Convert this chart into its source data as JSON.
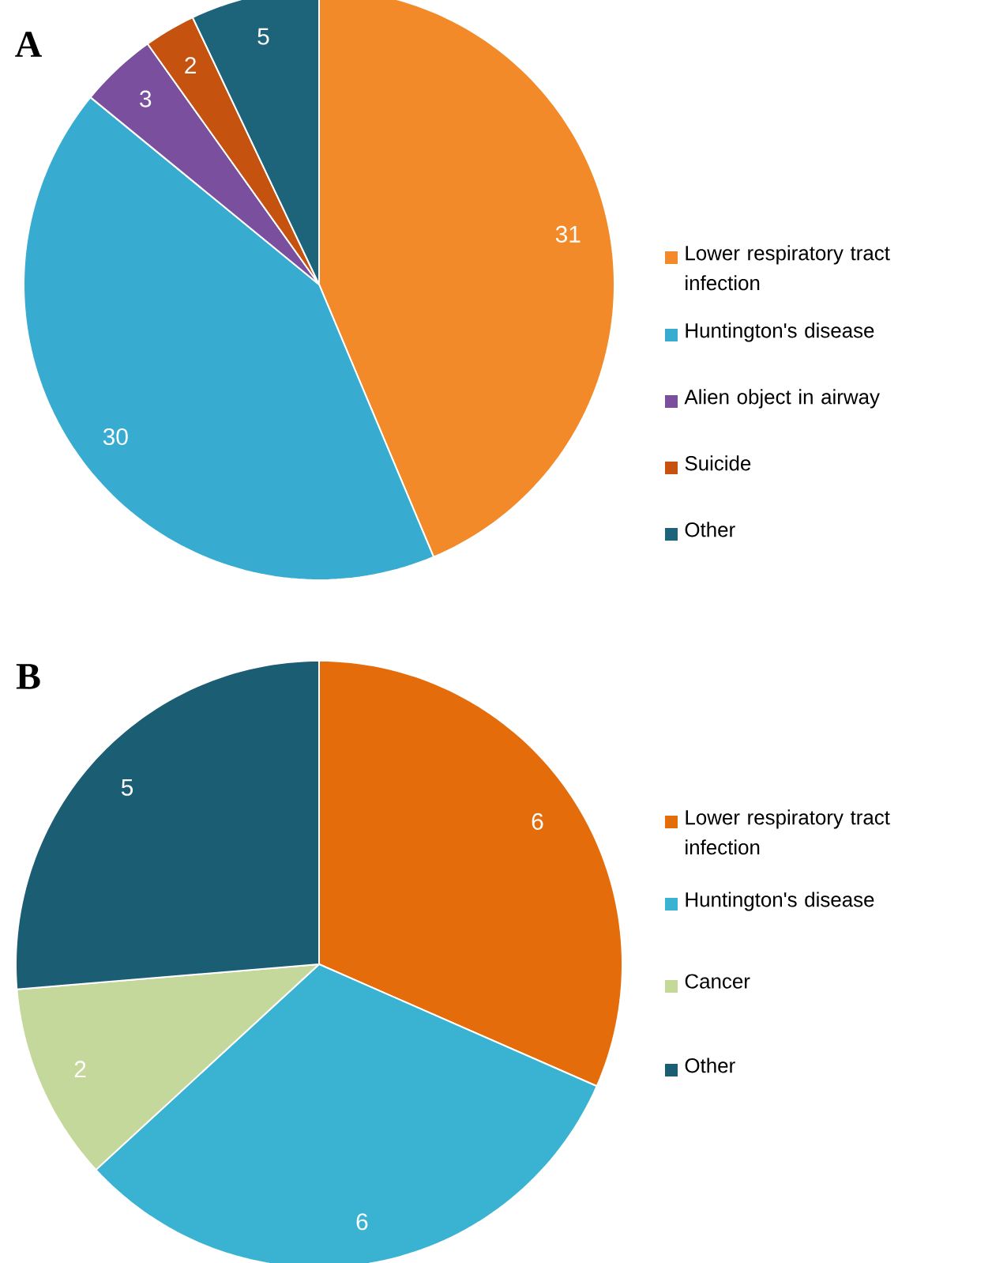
{
  "chart_data": [
    {
      "type": "pie",
      "title": "A",
      "categories": [
        "Lower respiratory tract infection",
        "Huntington's disease",
        "Alien object in airway",
        "Suicide",
        "Other"
      ],
      "values": [
        31,
        30,
        3,
        2,
        5
      ],
      "colors": [
        "#f28a2a",
        "#38acd0",
        "#7a4f9e",
        "#c5520e",
        "#1d6379"
      ],
      "data_labels": true,
      "legend": "right"
    },
    {
      "type": "pie",
      "title": "B",
      "categories": [
        "Lower respiratory tract infection",
        "Huntington's disease",
        "Cancer",
        "Other"
      ],
      "values": [
        6,
        6,
        2,
        5
      ],
      "colors": [
        "#e46c0a",
        "#3ab2d2",
        "#c4d89b",
        "#1b5d72"
      ],
      "data_labels": true,
      "legend": "right"
    }
  ]
}
